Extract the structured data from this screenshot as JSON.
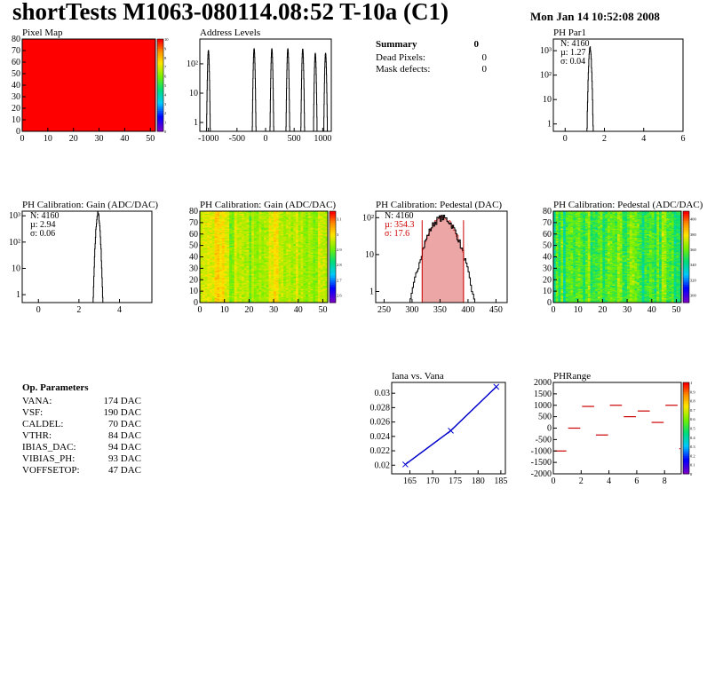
{
  "header": {
    "title": "shortTests M1063-080114.08:52 T-10a (C1)",
    "date": "Mon Jan 14 10:52:08 2008"
  },
  "colors": {
    "pixel_map_fill": "#ff0000",
    "hist_line": "#000000",
    "pedestal_fill": "#cc0000",
    "graph_line": "#0000cc",
    "phrange_line": "#cc0000"
  },
  "summary": {
    "title": "Summary",
    "count": "0",
    "rows": [
      {
        "label": "Dead Pixels:",
        "value": "0"
      },
      {
        "label": "Mask defects:",
        "value": "0"
      }
    ]
  },
  "op_parameters": {
    "title": "Op. Parameters",
    "rows": [
      {
        "label": "VANA:",
        "value": "174 DAC"
      },
      {
        "label": "VSF:",
        "value": "190 DAC"
      },
      {
        "label": "CALDEL:",
        "value": "70 DAC"
      },
      {
        "label": "VTHR:",
        "value": "84 DAC"
      },
      {
        "label": "IBIAS_DAC:",
        "value": "94 DAC"
      },
      {
        "label": "VIBIAS_PH:",
        "value": "93 DAC"
      },
      {
        "label": "VOFFSETOP:",
        "value": "47 DAC"
      }
    ]
  },
  "chart_data": [
    {
      "id": "pixel-map",
      "type": "heatmap",
      "title": "Pixel Map",
      "xlim": [
        0,
        52
      ],
      "ylim": [
        0,
        80
      ],
      "x_ticks": [
        "0",
        "10",
        "20",
        "30",
        "40",
        "50"
      ],
      "y_ticks": [
        "0",
        "10",
        "20",
        "30",
        "40",
        "50",
        "60",
        "70",
        "80"
      ],
      "z_ticks": [
        "0",
        "1",
        "2",
        "3",
        "4",
        "5",
        "6",
        "7",
        "8",
        "9",
        "10"
      ],
      "zlim": [
        0,
        10
      ],
      "uniform_value": 10
    },
    {
      "id": "address-levels",
      "type": "bar",
      "title": "Address Levels",
      "xlim": [
        -1150,
        1150
      ],
      "ylim": [
        0.5,
        700
      ],
      "log_y": true,
      "x_ticks": [
        "-1000",
        "-500",
        "0",
        "500",
        "1000"
      ],
      "y_ticks": [
        "1",
        "10",
        "10²"
      ],
      "peaks": [
        {
          "x": -1000,
          "height": 290
        },
        {
          "x": -200,
          "height": 330
        },
        {
          "x": 110,
          "height": 330
        },
        {
          "x": 390,
          "height": 330
        },
        {
          "x": 650,
          "height": 320
        },
        {
          "x": 870,
          "height": 230
        },
        {
          "x": 1050,
          "height": 230
        }
      ]
    },
    {
      "id": "ph-par1",
      "type": "bar",
      "title": "PH Par1",
      "xlim": [
        -0.6,
        6
      ],
      "ylim": [
        0.5,
        3000
      ],
      "log_y": true,
      "x_ticks": [
        "0",
        "2",
        "4",
        "6"
      ],
      "y_ticks": [
        "1",
        "10",
        "10²",
        "10³"
      ],
      "stats": {
        "n": "N: 4160",
        "mean": "µ: 1.27",
        "sigma": "σ: 0.04"
      },
      "mean": 1.27,
      "sigma": 0.04,
      "peak": 1300
    },
    {
      "id": "gain-hist",
      "type": "bar",
      "title": "PH Calibration: Gain (ADC/DAC)",
      "xlim": [
        -0.8,
        5.6
      ],
      "ylim": [
        0.5,
        1500
      ],
      "log_y": true,
      "x_ticks": [
        "0",
        "2",
        "4"
      ],
      "y_ticks": [
        "1",
        "10",
        "10²",
        "10³"
      ],
      "stats": {
        "n": "N: 4160",
        "mean": "µ: 2.94",
        "sigma": "σ: 0.06"
      },
      "mean": 2.94,
      "sigma": 0.06,
      "peak": 1200
    },
    {
      "id": "gain-map",
      "type": "heatmap",
      "title": "PH Calibration: Gain (ADC/DAC)",
      "xlim": [
        0,
        52
      ],
      "ylim": [
        0,
        80
      ],
      "x_ticks": [
        "0",
        "10",
        "20",
        "30",
        "40",
        "50"
      ],
      "y_ticks": [
        "0",
        "10",
        "20",
        "30",
        "40",
        "50",
        "60",
        "70",
        "80"
      ],
      "z_ticks": [
        "2.6",
        "2.7",
        "2.8",
        "2.9",
        "3",
        "3.1"
      ],
      "zlim": [
        2.55,
        3.15
      ]
    },
    {
      "id": "pedestal-hist",
      "type": "bar",
      "title": "PH Calibration: Pedestal (DAC)",
      "xlim": [
        235,
        470
      ],
      "ylim": [
        0.5,
        150
      ],
      "log_y": true,
      "x_ticks": [
        "250",
        "300",
        "350",
        "400",
        "450"
      ],
      "y_ticks": [
        "1",
        "10",
        "10²"
      ],
      "stats": {
        "n": "N: 4160",
        "mean": "µ: 354.3",
        "sigma": "σ: 17.6"
      },
      "mean": 354.3,
      "sigma": 17.6,
      "peak": 100,
      "fit_range": [
        318,
        392
      ]
    },
    {
      "id": "pedestal-map",
      "type": "heatmap",
      "title": "PH Calibration: Pedestal (ADC/DAC)",
      "xlim": [
        0,
        52
      ],
      "ylim": [
        0,
        80
      ],
      "x_ticks": [
        "0",
        "10",
        "20",
        "30",
        "40",
        "50"
      ],
      "y_ticks": [
        "0",
        "10",
        "20",
        "30",
        "40",
        "50",
        "60",
        "70",
        "80"
      ],
      "z_ticks": [
        "300",
        "320",
        "340",
        "360",
        "380",
        "400"
      ],
      "zlim": [
        290,
        410
      ]
    },
    {
      "id": "iana-vana",
      "type": "line",
      "title": "Iana vs. Vana",
      "xlim": [
        161,
        186
      ],
      "ylim": [
        0.0188,
        0.0315
      ],
      "x_ticks": [
        "165",
        "170",
        "175",
        "180",
        "185"
      ],
      "y_ticks": [
        "0.02",
        "0.022",
        "0.024",
        "0.026",
        "0.028",
        "0.03"
      ],
      "x": [
        164,
        174,
        184
      ],
      "y": [
        0.0201,
        0.0248,
        0.0309
      ]
    },
    {
      "id": "ph-range",
      "type": "scatter",
      "title": "PHRange",
      "xlim": [
        0,
        9.2
      ],
      "ylim": [
        -2000,
        2000
      ],
      "x_ticks": [
        "0",
        "2",
        "4",
        "6",
        "8"
      ],
      "y_ticks": [
        "-2000",
        "-1500",
        "-1000",
        "-500",
        "0",
        "500",
        "1000",
        "1500",
        "2000"
      ],
      "z_ticks": [
        "0",
        "0.1",
        "0.2",
        "0.3",
        "0.4",
        "0.5",
        "0.6",
        "0.7",
        "0.8",
        "0.9",
        "1"
      ],
      "zlim": [
        0,
        1
      ],
      "x": [
        0,
        1,
        2,
        3,
        4,
        5,
        6,
        7,
        8,
        9
      ],
      "y": [
        -1000,
        0,
        950,
        -300,
        1000,
        500,
        750,
        250,
        1000,
        -900
      ]
    }
  ]
}
